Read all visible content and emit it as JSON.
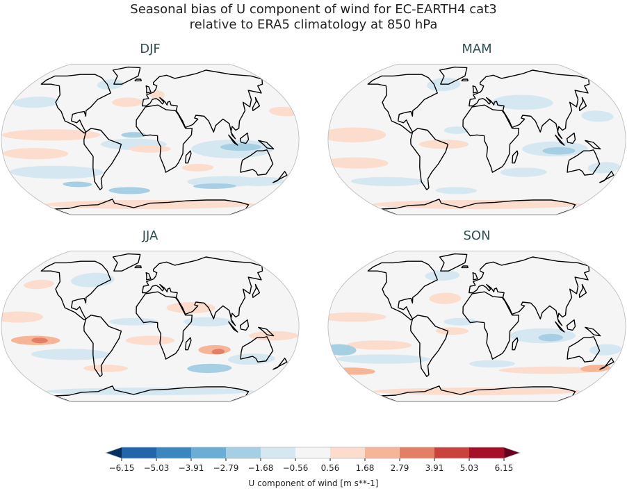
{
  "figure": {
    "title_line1": "Seasonal bias of U component of wind for EC-EARTH4 cat3",
    "title_line2": "relative to ERA5 climatology at 850 hPa"
  },
  "projection": "Robinson",
  "panels": [
    {
      "label": "DJF",
      "bias_patches": [
        [
          -150,
          40,
          30,
          6,
          -1.1
        ],
        [
          -120,
          5,
          60,
          6,
          1.1
        ],
        [
          -140,
          -15,
          40,
          6,
          1.1
        ],
        [
          -120,
          -35,
          60,
          7,
          -1.1
        ],
        [
          -100,
          -48,
          20,
          3,
          -2.2
        ],
        [
          -30,
          -55,
          30,
          4,
          -2.2
        ],
        [
          -20,
          5,
          15,
          3,
          -2.2
        ],
        [
          -20,
          -5,
          40,
          6,
          -1.1
        ],
        [
          0,
          -10,
          25,
          4,
          1.1
        ],
        [
          -60,
          60,
          20,
          6,
          -1.1
        ],
        [
          -30,
          40,
          20,
          5,
          1.1
        ],
        [
          10,
          48,
          10,
          5,
          1.1
        ],
        [
          100,
          -10,
          50,
          10,
          -1.1
        ],
        [
          110,
          -8,
          25,
          4,
          -2.2
        ],
        [
          170,
          30,
          20,
          5,
          1.1
        ],
        [
          100,
          -45,
          50,
          6,
          -1.1
        ],
        [
          90,
          -50,
          30,
          3,
          -2.2
        ],
        [
          60,
          -30,
          20,
          4,
          1.1
        ],
        [
          0,
          -72,
          180,
          6,
          1.1
        ],
        [
          150,
          -45,
          30,
          5,
          -1.1
        ]
      ]
    },
    {
      "label": "MAM",
      "bias_patches": [
        [
          -150,
          5,
          40,
          8,
          1.1
        ],
        [
          -150,
          -25,
          40,
          6,
          1.1
        ],
        [
          -120,
          -45,
          50,
          5,
          -1.1
        ],
        [
          -40,
          -5,
          30,
          5,
          1.1
        ],
        [
          -25,
          10,
          15,
          4,
          -1.1
        ],
        [
          -50,
          60,
          25,
          8,
          -1.1
        ],
        [
          60,
          40,
          40,
          8,
          -1.1
        ],
        [
          95,
          -10,
          40,
          8,
          -1.1
        ],
        [
          100,
          -12,
          20,
          4,
          -2.2
        ],
        [
          150,
          25,
          20,
          6,
          -1.1
        ],
        [
          60,
          -35,
          30,
          5,
          -1.1
        ],
        [
          -30,
          -55,
          30,
          4,
          -1.1
        ],
        [
          0,
          -72,
          180,
          6,
          1.1
        ],
        [
          160,
          -30,
          20,
          6,
          -1.1
        ]
      ]
    },
    {
      "label": "JJA",
      "bias_patches": [
        [
          -160,
          10,
          30,
          6,
          1.1
        ],
        [
          -140,
          -15,
          30,
          5,
          2.2
        ],
        [
          -135,
          -15,
          10,
          3,
          3.3
        ],
        [
          -100,
          -30,
          50,
          6,
          -1.1
        ],
        [
          -60,
          -45,
          30,
          4,
          1.1
        ],
        [
          -20,
          5,
          30,
          4,
          -1.1
        ],
        [
          0,
          -15,
          30,
          5,
          1.1
        ],
        [
          50,
          20,
          30,
          6,
          1.1
        ],
        [
          70,
          5,
          30,
          5,
          -1.1
        ],
        [
          80,
          -25,
          20,
          5,
          2.2
        ],
        [
          85,
          -27,
          8,
          3,
          3.3
        ],
        [
          80,
          -45,
          30,
          5,
          -2.2
        ],
        [
          130,
          -35,
          30,
          6,
          -1.1
        ],
        [
          -80,
          50,
          30,
          8,
          -1.1
        ],
        [
          -150,
          45,
          20,
          5,
          1.1
        ],
        [
          150,
          -10,
          30,
          5,
          1.1
        ],
        [
          0,
          -72,
          180,
          5,
          -1.1
        ]
      ]
    },
    {
      "label": "SON",
      "bias_patches": [
        [
          -150,
          10,
          40,
          5,
          1.1
        ],
        [
          -120,
          -20,
          40,
          5,
          1.1
        ],
        [
          -170,
          -25,
          20,
          6,
          -2.2
        ],
        [
          -120,
          -35,
          60,
          5,
          -1.1
        ],
        [
          -170,
          -48,
          30,
          4,
          2.2
        ],
        [
          -20,
          5,
          20,
          4,
          -1.1
        ],
        [
          -30,
          -5,
          20,
          4,
          1.1
        ],
        [
          -40,
          30,
          20,
          6,
          1.1
        ],
        [
          -50,
          55,
          25,
          6,
          -1.1
        ],
        [
          20,
          -40,
          30,
          4,
          -1.1
        ],
        [
          80,
          -10,
          40,
          8,
          -1.1
        ],
        [
          90,
          -12,
          15,
          4,
          -2.2
        ],
        [
          100,
          -47,
          70,
          4,
          1.1
        ],
        [
          160,
          -45,
          20,
          4,
          2.2
        ],
        [
          160,
          -25,
          20,
          6,
          -1.1
        ],
        [
          0,
          -72,
          180,
          5,
          1.1
        ]
      ]
    }
  ],
  "colorbar": {
    "label": "U component of wind [m s**-1]",
    "ticks": [
      "−6.15",
      "−5.03",
      "−3.91",
      "−2.79",
      "−1.68",
      "−0.56",
      "0.56",
      "1.68",
      "2.79",
      "3.91",
      "5.03",
      "6.15"
    ],
    "levels": [
      -6.15,
      -5.03,
      -3.91,
      -2.79,
      -1.68,
      -0.56,
      0.56,
      1.68,
      2.79,
      3.91,
      5.03,
      6.15
    ],
    "colors": [
      "#053061",
      "#2166ac",
      "#3a87c0",
      "#6aaed6",
      "#a6cfe4",
      "#d5e7f1",
      "#f5f5f5",
      "#fbdccd",
      "#f5b596",
      "#e37f64",
      "#c9433c",
      "#a50f2a",
      "#67001f"
    ],
    "extend": "both",
    "colormap": "RdBu_r"
  }
}
